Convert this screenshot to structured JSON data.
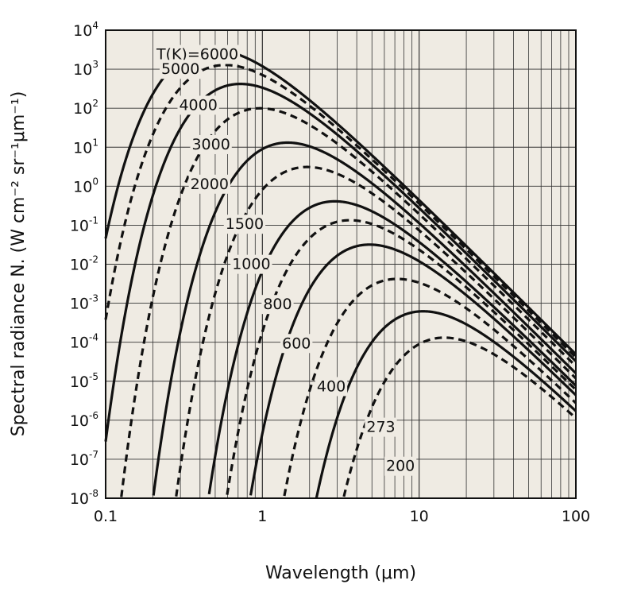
{
  "chart_data": {
    "type": "line",
    "title": "",
    "xlabel": "Wavelength (μm)",
    "ylabel": "Spectral radiance N. (W cm⁻² sr⁻¹μm⁻¹)",
    "x_scale": "log",
    "y_scale": "log",
    "xlim": [
      0.1,
      100
    ],
    "ylim": [
      1e-08,
      10000
    ],
    "x_ticks": [
      "0.1",
      "1",
      "10",
      "100"
    ],
    "y_ticks": [
      {
        "base": "10",
        "exp": "4"
      },
      {
        "base": "10",
        "exp": "3"
      },
      {
        "base": "10",
        "exp": "2"
      },
      {
        "base": "10",
        "exp": "1"
      },
      {
        "base": "10",
        "exp": "0"
      },
      {
        "base": "10",
        "exp": "-1"
      },
      {
        "base": "10",
        "exp": "-2"
      },
      {
        "base": "10",
        "exp": "-3"
      },
      {
        "base": "10",
        "exp": "-4"
      },
      {
        "base": "10",
        "exp": "-5"
      },
      {
        "base": "10",
        "exp": "-6"
      },
      {
        "base": "10",
        "exp": "-7"
      },
      {
        "base": "10",
        "exp": "-8"
      }
    ],
    "grid": true,
    "plot_background": "#efebe3",
    "line_color": "#111111",
    "series": [
      {
        "label": "T(K)=6000",
        "temperature_K": 6000,
        "style": "solid"
      },
      {
        "label": "5000",
        "temperature_K": 5000,
        "style": "dashed"
      },
      {
        "label": "4000",
        "temperature_K": 4000,
        "style": "solid"
      },
      {
        "label": "3000",
        "temperature_K": 3000,
        "style": "dashed"
      },
      {
        "label": "2000",
        "temperature_K": 2000,
        "style": "solid"
      },
      {
        "label": "1500",
        "temperature_K": 1500,
        "style": "dashed"
      },
      {
        "label": "1000",
        "temperature_K": 1000,
        "style": "solid"
      },
      {
        "label": "800",
        "temperature_K": 800,
        "style": "dashed"
      },
      {
        "label": "600",
        "temperature_K": 600,
        "style": "solid"
      },
      {
        "label": "400",
        "temperature_K": 400,
        "style": "dashed"
      },
      {
        "label": "273",
        "temperature_K": 273,
        "style": "solid"
      },
      {
        "label": "200",
        "temperature_K": 200,
        "style": "dashed"
      }
    ]
  }
}
